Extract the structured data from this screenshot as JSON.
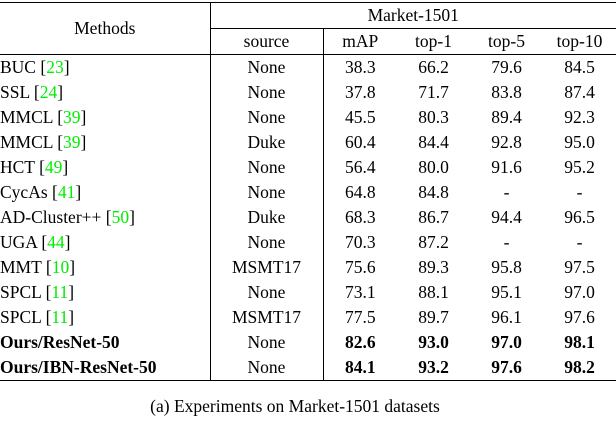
{
  "colors": {
    "citation_green": "#00ee00",
    "line_black": "#000000"
  },
  "table": {
    "header": {
      "methods_label": "Methods",
      "group_label": "Market-1501",
      "columns": [
        "source",
        "mAP",
        "top-1",
        "top-5",
        "top-10"
      ]
    },
    "rows": [
      {
        "method": "BUC",
        "cite": "23",
        "source": "None",
        "values": [
          "38.3",
          "66.2",
          "79.6",
          "84.5"
        ],
        "bold": false
      },
      {
        "method": "SSL",
        "cite": "24",
        "source": "None",
        "values": [
          "37.8",
          "71.7",
          "83.8",
          "87.4"
        ],
        "bold": false
      },
      {
        "method": "MMCL",
        "cite": "39",
        "source": "None",
        "values": [
          "45.5",
          "80.3",
          "89.4",
          "92.3"
        ],
        "bold": false
      },
      {
        "method": "MMCL",
        "cite": "39",
        "source": "Duke",
        "values": [
          "60.4",
          "84.4",
          "92.8",
          "95.0"
        ],
        "bold": false
      },
      {
        "method": "HCT",
        "cite": "49",
        "source": "None",
        "values": [
          "56.4",
          "80.0",
          "91.6",
          "95.2"
        ],
        "bold": false
      },
      {
        "method": "CycAs",
        "cite": "41",
        "source": "None",
        "values": [
          "64.8",
          "84.8",
          "-",
          "-"
        ],
        "bold": false
      },
      {
        "method": "AD-Cluster++",
        "cite": "50",
        "source": "Duke",
        "values": [
          "68.3",
          "86.7",
          "94.4",
          "96.5"
        ],
        "bold": false
      },
      {
        "method": "UGA",
        "cite": "44",
        "source": "None",
        "values": [
          "70.3",
          "87.2",
          "-",
          "-"
        ],
        "bold": false
      },
      {
        "method": "MMT",
        "cite": "10",
        "source": "MSMT17",
        "values": [
          "75.6",
          "89.3",
          "95.8",
          "97.5"
        ],
        "bold": false
      },
      {
        "method": "SPCL",
        "cite": "11",
        "source": "None",
        "values": [
          "73.1",
          "88.1",
          "95.1",
          "97.0"
        ],
        "bold": false
      },
      {
        "method": "SPCL",
        "cite": "11",
        "source": "MSMT17",
        "values": [
          "77.5",
          "89.7",
          "96.1",
          "97.6"
        ],
        "bold": false
      },
      {
        "method": "Ours/ResNet-50",
        "cite": "",
        "source": "None",
        "values": [
          "82.6",
          "93.0",
          "97.0",
          "98.1"
        ],
        "bold": true
      },
      {
        "method": "Ours/IBN-ResNet-50",
        "cite": "",
        "source": "None",
        "values": [
          "84.1",
          "93.2",
          "97.6",
          "98.2"
        ],
        "bold": true
      }
    ]
  },
  "caption": "(a) Experiments on Market-1501 datasets"
}
